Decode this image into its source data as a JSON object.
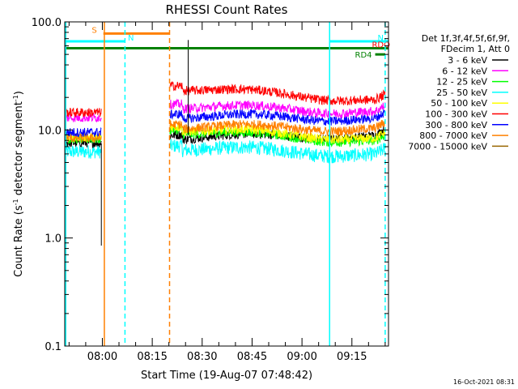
{
  "chart_data": {
    "type": "line",
    "title": "RHESSI Count Rates",
    "xlabel": "Start Time (19-Aug-07 07:48:42)",
    "ylabel_prefix": "Count Rate (s",
    "ylabel_sup": "-1",
    "ylabel_mid": " detector segment",
    "ylabel_sup2": "-1",
    "ylabel_suffix": ")",
    "yscale": "log",
    "ylim": [
      0.1,
      100.0
    ],
    "xlim_minutes": [
      -11.3,
      86
    ],
    "x_ticks": [
      {
        "label": "08:00",
        "minute": 0
      },
      {
        "label": "08:15",
        "minute": 15
      },
      {
        "label": "08:30",
        "minute": 30
      },
      {
        "label": "08:45",
        "minute": 45
      },
      {
        "label": "09:00",
        "minute": 60
      },
      {
        "label": "09:15",
        "minute": 75
      }
    ],
    "y_ticks": [
      {
        "label": "100.0",
        "value": 100
      },
      {
        "label": "10.0",
        "value": 10
      },
      {
        "label": "1.0",
        "value": 1
      },
      {
        "label": "0.1",
        "value": 0.1
      }
    ],
    "legend_header": [
      "Det 1f,3f,4f,5f,6f,9f,",
      "FDecim 1, Att 0"
    ],
    "legend_placement": "right",
    "series": [
      {
        "name": "3 - 6 keV",
        "color": "#000000",
        "level_start": 7.6,
        "level_mid": 8.0,
        "level_end": 9.0
      },
      {
        "name": "6 - 12 keV",
        "color": "#ff00ff",
        "level_start": 13.0,
        "level_mid": 15.5,
        "level_end": 15.0
      },
      {
        "name": "12 - 25 keV",
        "color": "#00ff00",
        "level_start": 8.2,
        "level_mid": 9.0,
        "level_end": 8.0
      },
      {
        "name": "25 - 50 keV",
        "color": "#00ffff",
        "level_start": 6.3,
        "level_mid": 6.4,
        "level_end": 6.0
      },
      {
        "name": "50 - 100 keV",
        "color": "#ffff00",
        "level_start": 8.6,
        "level_mid": 9.6,
        "level_end": 8.4
      },
      {
        "name": "100 - 300 keV",
        "color": "#ff0000",
        "level_start": 14.5,
        "level_mid": 23.0,
        "level_end": 19.0
      },
      {
        "name": "300 - 800 keV",
        "color": "#0000ff",
        "level_start": 9.5,
        "level_mid": 12.5,
        "level_end": 13.0
      },
      {
        "name": "800 - 7000 keV",
        "color": "#ff8000",
        "level_start": 8.4,
        "level_mid": 10.0,
        "level_end": 10.5
      },
      {
        "name": "7000 - 15000 keV",
        "color": "#996600",
        "level_start": null,
        "level_mid": null,
        "level_end": null
      }
    ],
    "data_gap_minutes": [
      -0.3,
      20.3
    ],
    "spike": {
      "minute": 25.8,
      "value": 68
    },
    "flags": [
      {
        "label": "S",
        "color": "#ff8000",
        "start": 0.3,
        "end": 20.2,
        "level": 78
      },
      {
        "label": "N",
        "color": "#00ffff",
        "start": -11.3,
        "end": 6.8,
        "level": 66
      },
      {
        "label": "N",
        "color": "#00ffff",
        "start": 68.3,
        "end": 86,
        "level": 66
      },
      {
        "label": "",
        "color": "#008000",
        "start": -11.3,
        "end": 86,
        "level": 57
      },
      {
        "label": "RD4",
        "color": "#008000",
        "start": 82,
        "end": 85,
        "level": 50
      },
      {
        "label": "RDO",
        "color": "#ff0000",
        "start": 84.5,
        "end": 86,
        "level": 57
      }
    ],
    "vlines": [
      {
        "minute": -11.0,
        "color": "#00ffff",
        "dashed": false
      },
      {
        "minute": 0.6,
        "color": "#ff8000",
        "dashed": false
      },
      {
        "minute": 6.8,
        "color": "#00ffff",
        "dashed": true
      },
      {
        "minute": 20.2,
        "color": "#ff8000",
        "dashed": true
      },
      {
        "minute": 68.3,
        "color": "#00ffff",
        "dashed": false
      },
      {
        "minute": 85.0,
        "color": "#00ffff",
        "dashed": true
      }
    ],
    "grid": false,
    "timestamp": "16-Oct-2021 08:31"
  }
}
